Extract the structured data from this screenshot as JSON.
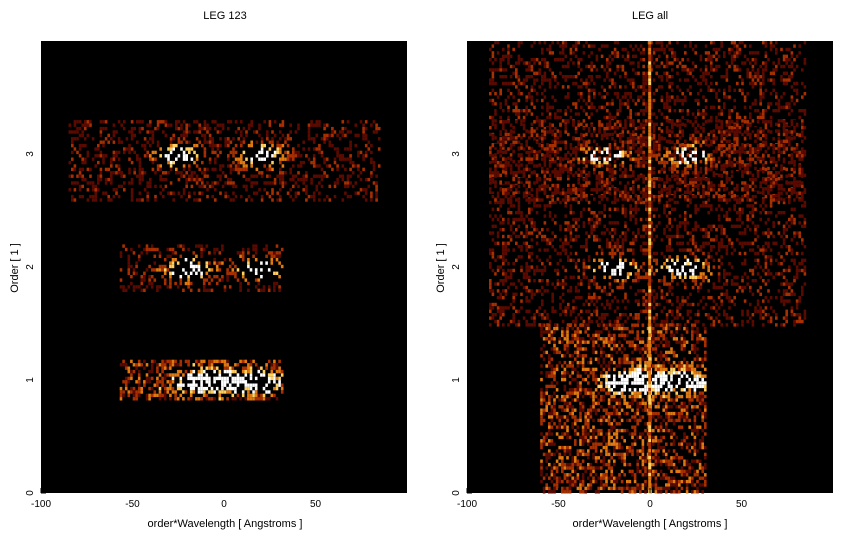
{
  "chart_data": [
    {
      "type": "heatmap",
      "title": "LEG 123",
      "xlabel": "order*Wavelength [ Angstroms ]",
      "ylabel": "Order [ 1 ]",
      "xlim": [
        -100,
        100
      ],
      "ylim": [
        0,
        4
      ],
      "xticks": [
        "-100",
        "-50",
        "0",
        "50"
      ],
      "yticks": [
        "0",
        "1",
        "2",
        "3"
      ],
      "colormap": [
        "#000000",
        "#5a0a00",
        "#a83000",
        "#e07a10",
        "#ffd060",
        "#ffffff"
      ],
      "intensity_regions": [
        {
          "order": 1,
          "x_range": [
            -57,
            32
          ],
          "y_range": [
            0.82,
            1.18
          ],
          "peak_x": [
            -15,
            0,
            20
          ],
          "level": "high"
        },
        {
          "order": 2,
          "x_range": [
            -57,
            32
          ],
          "y_range": [
            1.8,
            2.2
          ],
          "peak_x": [
            -20,
            18
          ],
          "level": "medium"
        },
        {
          "order": 3,
          "x_range": [
            -85,
            85
          ],
          "y_range": [
            2.6,
            3.3
          ],
          "peak_x": [
            -25,
            20
          ],
          "level": "medium"
        }
      ]
    },
    {
      "type": "heatmap",
      "title": "LEG all",
      "xlabel": "order*Wavelength [ Angstroms ]",
      "ylabel": "Order [ 1 ]",
      "xlim": [
        -100,
        100
      ],
      "ylim": [
        0,
        4
      ],
      "xticks": [
        "-100",
        "-50",
        "0",
        "50"
      ],
      "yticks": [
        "0",
        "1",
        "2",
        "3"
      ],
      "colormap": [
        "#000000",
        "#5a0a00",
        "#a83000",
        "#e07a10",
        "#ffd060",
        "#ffffff"
      ],
      "intensity_regions": [
        {
          "order": 1,
          "x_range": [
            -60,
            30
          ],
          "y_range": [
            0,
            1.5
          ],
          "peak_x": [
            -15,
            0,
            20
          ],
          "level": "high"
        },
        {
          "order": 2,
          "x_range": [
            -88,
            85
          ],
          "y_range": [
            1.5,
            4
          ],
          "peak_x": [
            -20,
            18
          ],
          "level": "medium"
        },
        {
          "order": 3,
          "x_range": [
            -88,
            85
          ],
          "y_range": [
            2.6,
            3.3
          ],
          "peak_x": [
            -25,
            20
          ],
          "level": "medium"
        }
      ]
    }
  ]
}
